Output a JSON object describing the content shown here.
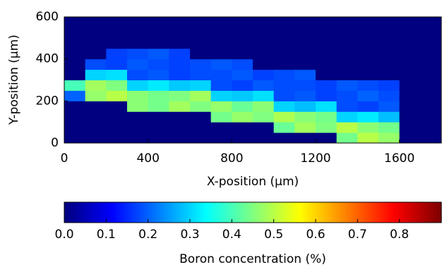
{
  "chart_data": {
    "type": "heatmap",
    "x_label": "X-position (μm)",
    "y_label": "Y-position (μm)",
    "xbins": [
      0,
      100,
      200,
      300,
      400,
      500,
      600,
      700,
      800,
      900,
      1000,
      1100,
      1200,
      1300,
      1400,
      1500,
      1600,
      1700,
      1800
    ],
    "ybins": [
      0,
      50,
      100,
      150,
      200,
      250,
      300,
      350,
      400,
      450,
      500,
      550,
      600
    ],
    "values": [
      [
        0,
        0,
        0,
        0,
        0,
        0,
        0,
        0,
        0,
        0,
        0,
        0,
        0,
        0.44,
        0.5,
        0.47,
        0,
        0
      ],
      [
        0,
        0,
        0,
        0,
        0,
        0,
        0,
        0,
        0,
        0,
        0.43,
        0.48,
        0.45,
        0.5,
        0.46,
        0.44,
        0,
        0
      ],
      [
        0,
        0,
        0,
        0,
        0,
        0,
        0,
        0.44,
        0.47,
        0.45,
        0.49,
        0.46,
        0.44,
        0.3,
        0.32,
        0.28,
        0,
        0
      ],
      [
        0,
        0,
        0,
        0.46,
        0.44,
        0.48,
        0.45,
        0.47,
        0.43,
        0.46,
        0.3,
        0.28,
        0.31,
        0.18,
        0.17,
        0.19,
        0,
        0
      ],
      [
        0.2,
        0.47,
        0.5,
        0.46,
        0.44,
        0.45,
        0.48,
        0.3,
        0.29,
        0.31,
        0.18,
        0.19,
        0.17,
        0.18,
        0.2,
        0.18,
        0,
        0
      ],
      [
        0.4,
        0.48,
        0.45,
        0.3,
        0.32,
        0.29,
        0.3,
        0.18,
        0.17,
        0.19,
        0.18,
        0.18,
        0.17,
        0.19,
        0.18,
        0.17,
        0,
        0
      ],
      [
        0,
        0.3,
        0.31,
        0.18,
        0.19,
        0.17,
        0.18,
        0.18,
        0.19,
        0.17,
        0.18,
        0.19,
        0,
        0,
        0,
        0,
        0,
        0
      ],
      [
        0,
        0.18,
        0.17,
        0.19,
        0.18,
        0.17,
        0.18,
        0.19,
        0.18,
        0,
        0,
        0,
        0,
        0,
        0,
        0,
        0,
        0
      ],
      [
        0,
        0,
        0.17,
        0.18,
        0.19,
        0.17,
        0,
        0,
        0,
        0,
        0,
        0,
        0,
        0,
        0,
        0,
        0,
        0
      ],
      [
        0,
        0,
        0,
        0,
        0,
        0,
        0,
        0,
        0,
        0,
        0,
        0,
        0,
        0,
        0,
        0,
        0,
        0
      ],
      [
        0,
        0,
        0,
        0,
        0,
        0,
        0,
        0,
        0,
        0,
        0,
        0,
        0,
        0,
        0,
        0,
        0,
        0
      ],
      [
        0,
        0,
        0,
        0,
        0,
        0,
        0,
        0,
        0,
        0,
        0,
        0,
        0,
        0,
        0,
        0,
        0,
        0
      ]
    ],
    "xlim": [
      0,
      1800
    ],
    "ylim": [
      0,
      600
    ],
    "xticks": [
      0,
      400,
      800,
      1200,
      1600
    ],
    "yticks": [
      0,
      200,
      400,
      600
    ],
    "colorbar": {
      "label": "Boron concentration (%)",
      "colormap": "jet",
      "lim": [
        0,
        0.9
      ],
      "ticks": [
        {
          "value": 0,
          "label": "0.0"
        },
        0.1,
        0.2,
        0.3,
        0.4,
        0.5,
        0.6,
        0.7,
        0.8
      ]
    }
  }
}
